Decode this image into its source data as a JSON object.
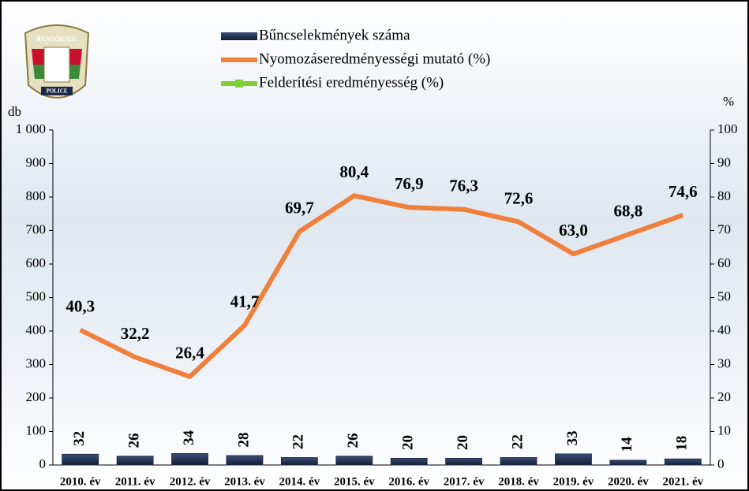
{
  "chart_data": {
    "type": "bar-line",
    "logo": {
      "top": "RENDŐRSÉG",
      "bottom": "POLICE"
    },
    "y_label": "db",
    "y2_label": "%",
    "categories": [
      "2010. év",
      "2011. év",
      "2012. év",
      "2013. év",
      "2014. év",
      "2015. év",
      "2016. év",
      "2017. év",
      "2018. év",
      "2019. év",
      "2020. év",
      "2021. év"
    ],
    "series": [
      {
        "name": "Bűncselekmények száma",
        "type": "bar",
        "color": "#1c2a48",
        "values": [
          32,
          26,
          34,
          28,
          22,
          26,
          20,
          20,
          22,
          33,
          14,
          18
        ]
      },
      {
        "name": "Nyomozáseredményességi mutató (%)",
        "type": "line",
        "axis": "y2",
        "color": "#f07f3c",
        "values": [
          40.3,
          32.2,
          26.4,
          41.7,
          69.7,
          80.4,
          76.9,
          76.3,
          72.6,
          63.0,
          68.8,
          74.6
        ],
        "value_labels": [
          "40,3",
          "32,2",
          "26,4",
          "41,7",
          "69,7",
          "80,4",
          "76,9",
          "76,3",
          "72,6",
          "63,0",
          "68,8",
          "74,6"
        ]
      },
      {
        "name": "Felderítési eredményesség (%)",
        "type": "line",
        "axis": "y2",
        "color": "#7fcf3a",
        "values": [
          null,
          null,
          null,
          null,
          null,
          null,
          null,
          null,
          null,
          null,
          null,
          null
        ]
      }
    ],
    "ylim": [
      0,
      1000
    ],
    "yticks": [
      0,
      100,
      200,
      300,
      400,
      500,
      600,
      700,
      800,
      900,
      {
        "value": 1000,
        "label": "1 000"
      }
    ],
    "y2lim": [
      0,
      100
    ],
    "y2ticks": [
      0,
      10,
      20,
      30,
      40,
      50,
      60,
      70,
      80,
      90,
      100
    ]
  }
}
